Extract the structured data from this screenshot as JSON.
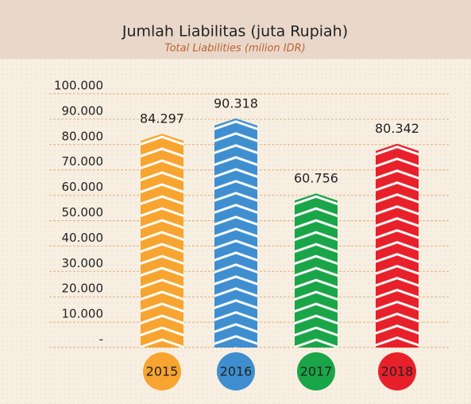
{
  "chart_data": {
    "type": "bar",
    "title": "Jumlah Liabilitas (juta Rupiah)",
    "subtitle": "Total Liabilities (milion IDR)",
    "categories": [
      "2015",
      "2016",
      "2017",
      "2018"
    ],
    "values": [
      84297,
      90318,
      60756,
      80342
    ],
    "value_labels": [
      "84.297",
      "90.318",
      "60.756",
      "80.342"
    ],
    "colors": [
      "#f7a530",
      "#3f8fd0",
      "#1aa548",
      "#e8202a"
    ],
    "ylim": [
      0,
      100000
    ],
    "yticks": [
      {
        "value": 0,
        "label": "-"
      },
      {
        "value": 10000,
        "label": "10.000"
      },
      {
        "value": 20000,
        "label": "20.000"
      },
      {
        "value": 30000,
        "label": "30.000"
      },
      {
        "value": 40000,
        "label": "40.000"
      },
      {
        "value": 50000,
        "label": "50.000"
      },
      {
        "value": 60000,
        "label": "60.000"
      },
      {
        "value": 70000,
        "label": "70.000"
      },
      {
        "value": 80000,
        "label": "80.000"
      },
      {
        "value": 90000,
        "label": "90.000"
      },
      {
        "value": 100000,
        "label": "100.000"
      }
    ],
    "grid": true
  }
}
